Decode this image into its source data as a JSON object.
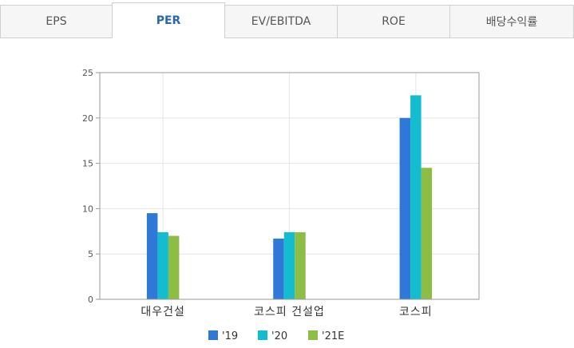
{
  "tabs": [
    {
      "label": "EPS",
      "active": false
    },
    {
      "label": "PER",
      "active": true
    },
    {
      "label": "EV/EBITDA",
      "active": false
    },
    {
      "label": "ROE",
      "active": false
    },
    {
      "label": "배당수익률",
      "active": false
    }
  ],
  "chart_data": {
    "type": "bar",
    "categories": [
      "대우건설",
      "코스피 건설업",
      "코스피"
    ],
    "series": [
      {
        "name": "'19",
        "values": [
          9.5,
          6.7,
          20.0
        ],
        "color": "#2f78d8"
      },
      {
        "name": "'20",
        "values": [
          7.4,
          7.4,
          22.5
        ],
        "color": "#14bcd0"
      },
      {
        "name": "'21E",
        "values": [
          7.0,
          7.4,
          14.5
        ],
        "color": "#8dbd45"
      }
    ],
    "ylim": [
      0,
      25
    ],
    "yticks": [
      0,
      5,
      10,
      15,
      20,
      25
    ],
    "grid": true,
    "legend": "bottom"
  }
}
